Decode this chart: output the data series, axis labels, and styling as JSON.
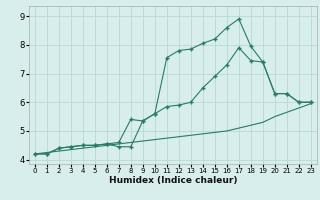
{
  "xlabel": "Humidex (Indice chaleur)",
  "background_color": "#d8eeec",
  "grid_color": "#b8d8d4",
  "line_color": "#2a7a6a",
  "xlim": [
    -0.5,
    23.5
  ],
  "ylim": [
    3.85,
    9.35
  ],
  "xticks": [
    0,
    1,
    2,
    3,
    4,
    5,
    6,
    7,
    8,
    9,
    10,
    11,
    12,
    13,
    14,
    15,
    16,
    17,
    18,
    19,
    20,
    21,
    22,
    23
  ],
  "yticks": [
    4,
    5,
    6,
    7,
    8,
    9
  ],
  "line1_x": [
    0,
    1,
    2,
    3,
    4,
    5,
    6,
    7,
    8,
    9,
    10,
    11,
    12,
    13,
    14,
    15,
    16,
    17,
    18,
    19,
    20,
    21,
    22,
    23
  ],
  "line1_y": [
    4.2,
    4.2,
    4.4,
    4.45,
    4.5,
    4.5,
    4.55,
    4.45,
    4.45,
    5.35,
    5.6,
    7.55,
    7.8,
    7.85,
    8.05,
    8.2,
    8.6,
    8.9,
    7.95,
    7.4,
    6.3,
    6.3,
    6.0,
    6.0
  ],
  "line2_x": [
    0,
    1,
    2,
    3,
    4,
    5,
    6,
    7,
    8,
    9,
    10,
    11,
    12,
    13,
    14,
    15,
    16,
    17,
    18,
    19,
    20,
    21,
    22,
    23
  ],
  "line2_y": [
    4.2,
    4.2,
    4.4,
    4.45,
    4.5,
    4.5,
    4.55,
    4.6,
    5.4,
    5.35,
    5.6,
    5.85,
    5.9,
    6.0,
    6.5,
    6.9,
    7.3,
    7.9,
    7.45,
    7.4,
    6.3,
    6.3,
    6.0,
    6.0
  ],
  "line3_x": [
    0,
    1,
    2,
    3,
    4,
    5,
    6,
    7,
    8,
    9,
    10,
    11,
    12,
    13,
    14,
    15,
    16,
    17,
    18,
    19,
    20,
    21,
    22,
    23
  ],
  "line3_y": [
    4.2,
    4.25,
    4.3,
    4.35,
    4.4,
    4.45,
    4.5,
    4.55,
    4.6,
    4.65,
    4.7,
    4.75,
    4.8,
    4.85,
    4.9,
    4.95,
    5.0,
    5.1,
    5.2,
    5.3,
    5.5,
    5.65,
    5.8,
    5.95
  ]
}
